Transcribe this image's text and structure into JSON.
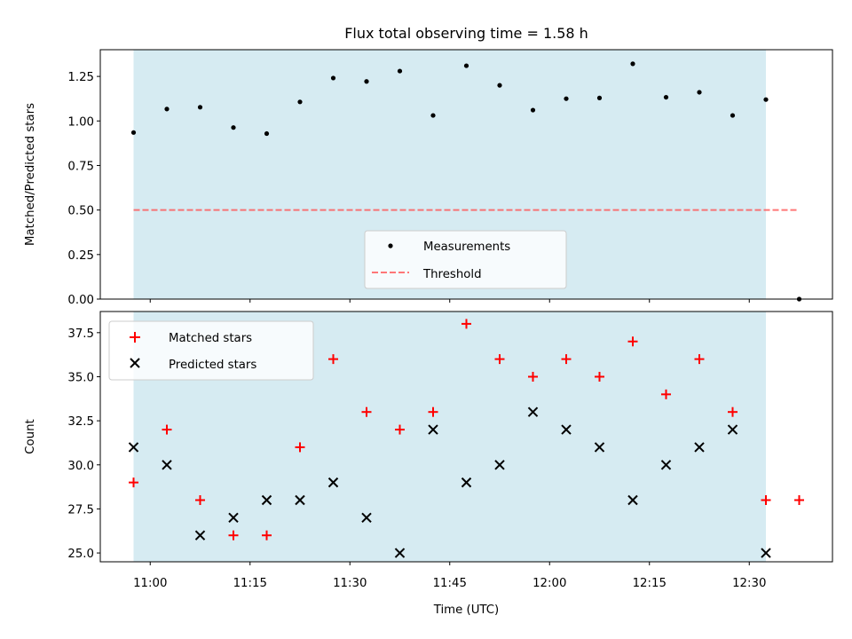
{
  "chart_data": [
    {
      "type": "scatter",
      "title": "Flux total observing time = 1.58 h",
      "xlabel": "",
      "ylabel": "Matched/Predicted stars",
      "ylim": [
        0,
        1.4
      ],
      "yticks": [
        "0.00",
        "0.25",
        "0.50",
        "0.75",
        "1.00",
        "1.25"
      ],
      "shaded_region": {
        "x_start": "10:57:30",
        "x_end": "12:32:30",
        "color": "#add8e6"
      },
      "series": [
        {
          "name": "Measurements",
          "marker": "dot",
          "color": "#000000",
          "x": [
            "10:57:30",
            "11:02:30",
            "11:07:30",
            "11:12:30",
            "11:17:30",
            "11:22:30",
            "11:27:30",
            "11:32:30",
            "11:37:30",
            "11:42:30",
            "11:47:30",
            "11:52:30",
            "11:57:30",
            "12:02:30",
            "12:07:30",
            "12:12:30",
            "12:17:30",
            "12:22:30",
            "12:27:30",
            "12:32:30",
            "12:37:30"
          ],
          "y": [
            0.935,
            1.067,
            1.077,
            0.963,
            0.929,
            1.107,
            1.241,
            1.222,
            1.28,
            1.031,
            1.31,
            1.2,
            1.061,
            1.125,
            1.129,
            1.321,
            1.133,
            1.161,
            1.031,
            1.12,
            0.0
          ]
        },
        {
          "name": "Threshold",
          "style": "dashed",
          "color": "#ff5555",
          "x": [
            "10:57:30",
            "12:37:30"
          ],
          "y": [
            0.5,
            0.5
          ]
        }
      ],
      "legend_position": "lower-center"
    },
    {
      "type": "scatter",
      "title": "",
      "xlabel": "Time (UTC)",
      "ylabel": "Count",
      "ylim": [
        24.5,
        38.7
      ],
      "yticks": [
        "25.0",
        "27.5",
        "30.0",
        "32.5",
        "35.0",
        "37.5"
      ],
      "xticks": [
        "11:00",
        "11:15",
        "11:30",
        "11:45",
        "12:00",
        "12:15",
        "12:30"
      ],
      "shaded_region": {
        "x_start": "10:57:30",
        "x_end": "12:32:30",
        "color": "#add8e6"
      },
      "series": [
        {
          "name": "Matched stars",
          "marker": "plus",
          "color": "#ff0000",
          "x": [
            "10:57:30",
            "11:02:30",
            "11:07:30",
            "11:12:30",
            "11:17:30",
            "11:22:30",
            "11:27:30",
            "11:32:30",
            "11:37:30",
            "11:42:30",
            "11:47:30",
            "11:52:30",
            "11:57:30",
            "12:02:30",
            "12:07:30",
            "12:12:30",
            "12:17:30",
            "12:22:30",
            "12:27:30",
            "12:32:30",
            "12:37:30"
          ],
          "y": [
            29,
            32,
            28,
            26,
            26,
            31,
            36,
            33,
            32,
            33,
            38,
            36,
            35,
            36,
            35,
            37,
            34,
            36,
            33,
            28,
            28
          ]
        },
        {
          "name": "Predicted stars",
          "marker": "x",
          "color": "#000000",
          "x": [
            "10:57:30",
            "11:02:30",
            "11:07:30",
            "11:12:30",
            "11:17:30",
            "11:22:30",
            "11:27:30",
            "11:32:30",
            "11:37:30",
            "11:42:30",
            "11:47:30",
            "11:52:30",
            "11:57:30",
            "12:02:30",
            "12:07:30",
            "12:12:30",
            "12:17:30",
            "12:22:30",
            "12:27:30",
            "12:32:30"
          ],
          "y": [
            31,
            30,
            26,
            27,
            28,
            28,
            29,
            27,
            25,
            32,
            29,
            30,
            33,
            32,
            31,
            28,
            30,
            31,
            32,
            25
          ]
        }
      ],
      "legend_position": "top-left"
    }
  ]
}
